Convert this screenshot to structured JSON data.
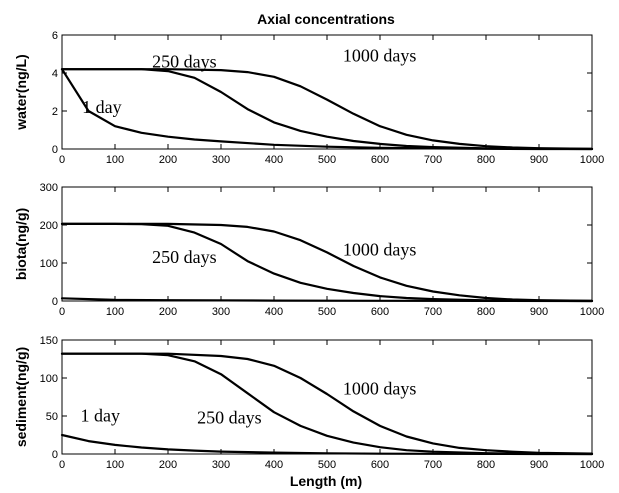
{
  "chart_data": {
    "title": "Axial concentrations",
    "xlabel": "Length (m)",
    "panels": [
      {
        "type": "line",
        "ylabel": "water(ng/L)",
        "xlim": [
          0,
          1000
        ],
        "ylim": [
          0,
          6
        ],
        "xticks": [
          0,
          100,
          200,
          300,
          400,
          500,
          600,
          700,
          800,
          900,
          1000
        ],
        "yticks": [
          0,
          2,
          4,
          6
        ],
        "series": [
          {
            "x": [
              0,
              50,
              100,
              150,
              200,
              250,
              300,
              400,
              500,
              600,
              700,
              800,
              900,
              1000
            ],
            "values": [
              4.2,
              2.0,
              1.2,
              0.85,
              0.65,
              0.5,
              0.4,
              0.22,
              0.12,
              0.06,
              0.03,
              0.01,
              0.0,
              0.0
            ]
          },
          {
            "x": [
              0,
              50,
              100,
              150,
              200,
              250,
              300,
              350,
              400,
              450,
              500,
              550,
              600,
              650,
              700,
              800,
              900,
              1000
            ],
            "values": [
              4.2,
              4.2,
              4.2,
              4.2,
              4.1,
              3.75,
              3.0,
              2.1,
              1.4,
              0.95,
              0.65,
              0.42,
              0.27,
              0.16,
              0.1,
              0.03,
              0.01,
              0.0
            ]
          },
          {
            "x": [
              0,
              100,
              200,
              300,
              350,
              400,
              450,
              500,
              550,
              600,
              650,
              700,
              750,
              800,
              850,
              900,
              1000
            ],
            "values": [
              4.2,
              4.2,
              4.2,
              4.15,
              4.05,
              3.8,
              3.3,
              2.6,
              1.85,
              1.2,
              0.75,
              0.45,
              0.27,
              0.15,
              0.08,
              0.04,
              0.01
            ]
          }
        ],
        "annotations": [
          {
            "text": "1 day",
            "x": 38,
            "y": 1.9
          },
          {
            "text": "250 days",
            "x": 170,
            "y": 4.3
          },
          {
            "text": "1000 days",
            "x": 530,
            "y": 4.6
          }
        ]
      },
      {
        "type": "line",
        "ylabel": "biota(ng/g)",
        "xlim": [
          0,
          1000
        ],
        "ylim": [
          0,
          300
        ],
        "xticks": [
          0,
          100,
          200,
          300,
          400,
          500,
          600,
          700,
          800,
          900,
          1000
        ],
        "yticks": [
          0,
          100,
          200,
          300
        ],
        "series": [
          {
            "x": [
              0,
              100,
              200,
              400,
              600,
              800,
              1000
            ],
            "values": [
              7,
              3,
              2,
              1,
              0.5,
              0.2,
              0
            ]
          },
          {
            "x": [
              0,
              50,
              100,
              150,
              200,
              250,
              300,
              350,
              400,
              450,
              500,
              550,
              600,
              650,
              700,
              800,
              900,
              1000
            ],
            "values": [
              203,
              203,
              203,
              202,
              198,
              180,
              150,
              105,
              72,
              48,
              32,
              21,
              13,
              8,
              5,
              1.5,
              0.5,
              0
            ]
          },
          {
            "x": [
              0,
              100,
              200,
              300,
              350,
              400,
              450,
              500,
              550,
              600,
              650,
              700,
              750,
              800,
              850,
              900,
              1000
            ],
            "values": [
              203,
              203,
              203,
              200,
              195,
              183,
              160,
              128,
              92,
              62,
              40,
              25,
              15,
              8,
              4,
              2,
              0.5
            ]
          }
        ],
        "annotations": [
          {
            "text": "250 days",
            "x": 170,
            "y": 100
          },
          {
            "text": "1000 days",
            "x": 530,
            "y": 120
          }
        ]
      },
      {
        "type": "line",
        "ylabel": "sediment(ng/g)",
        "xlim": [
          0,
          1000
        ],
        "ylim": [
          0,
          150
        ],
        "xticks": [
          0,
          100,
          200,
          300,
          400,
          500,
          600,
          700,
          800,
          900,
          1000
        ],
        "yticks": [
          0,
          50,
          100,
          150
        ],
        "series": [
          {
            "x": [
              0,
              50,
              100,
              150,
              200,
              250,
              300,
              400,
              500,
              600,
              700,
              800,
              900,
              1000
            ],
            "values": [
              25,
              17,
              12,
              8.5,
              6,
              4.5,
              3.2,
              1.8,
              0.9,
              0.4,
              0.2,
              0.1,
              0,
              0
            ]
          },
          {
            "x": [
              0,
              50,
              100,
              150,
              200,
              250,
              300,
              350,
              400,
              450,
              500,
              550,
              600,
              650,
              700,
              800,
              900,
              1000
            ],
            "values": [
              132,
              132,
              132,
              132,
              130,
              122,
              105,
              80,
              55,
              37,
              24,
              15,
              9,
              5,
              3,
              1,
              0.3,
              0
            ]
          },
          {
            "x": [
              0,
              100,
              200,
              300,
              350,
              400,
              450,
              500,
              550,
              600,
              650,
              700,
              750,
              800,
              850,
              900,
              1000
            ],
            "values": [
              132,
              132,
              132,
              129,
              125,
              116,
              100,
              79,
              56,
              37,
              23,
              14,
              8,
              5,
              3,
              1.5,
              0.5
            ]
          }
        ],
        "annotations": [
          {
            "text": "1 day",
            "x": 35,
            "y": 43
          },
          {
            "text": "250 days",
            "x": 255,
            "y": 40
          },
          {
            "text": "1000 days",
            "x": 530,
            "y": 78
          }
        ]
      }
    ]
  }
}
